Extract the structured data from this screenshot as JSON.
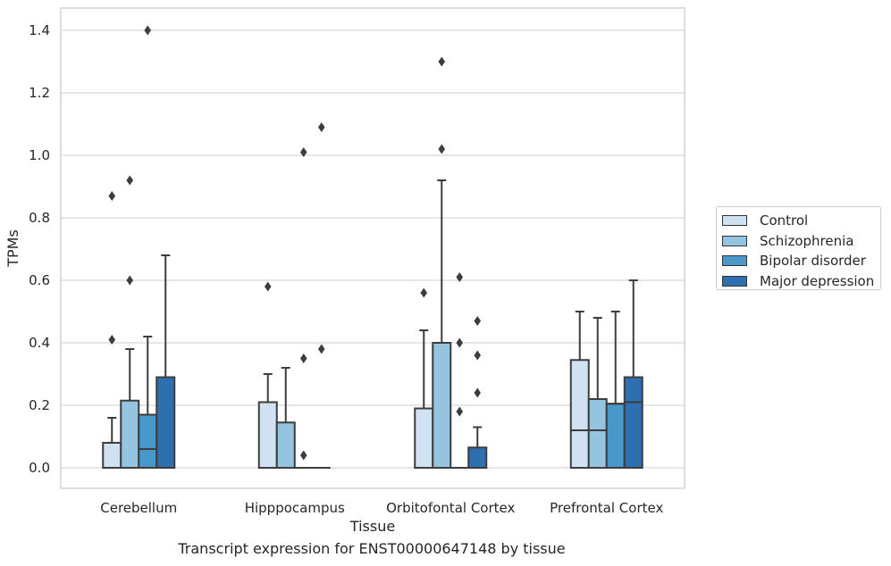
{
  "caption": "Transcript expression for ENST00000647148 by tissue",
  "chart_data": {
    "type": "box",
    "xlabel": "Tissue",
    "ylabel": "TPMs",
    "ylim": [
      -0.07,
      1.47
    ],
    "yticks": [
      "0.0",
      "0.2",
      "0.4",
      "0.6",
      "0.8",
      "1.0",
      "1.2",
      "1.4"
    ],
    "ytick_values": [
      0,
      0.2,
      0.4,
      0.6,
      0.8,
      1.0,
      1.2,
      1.4
    ],
    "grid": true,
    "legend_position": "outside right",
    "categories": [
      "Cerebellum",
      "Hipppocampus",
      "Orbitofontal Cortex",
      "Prefrontal Cortex"
    ],
    "series": [
      {
        "name": "Control",
        "color": "#d0e1f2",
        "boxes": [
          {
            "q1": 0,
            "median": 0,
            "q3": 0.08,
            "whisker_low": 0,
            "whisker_high": 0.16,
            "outliers": [
              0.41,
              0.87
            ]
          },
          {
            "q1": 0,
            "median": 0,
            "q3": 0.21,
            "whisker_low": 0,
            "whisker_high": 0.3,
            "outliers": [
              0.58
            ]
          },
          {
            "q1": 0,
            "median": 0,
            "q3": 0.19,
            "whisker_low": 0,
            "whisker_high": 0.44,
            "outliers": [
              0.56
            ]
          },
          {
            "q1": 0,
            "median": 0.12,
            "q3": 0.345,
            "whisker_low": 0,
            "whisker_high": 0.5,
            "outliers": []
          }
        ]
      },
      {
        "name": "Schizophrenia",
        "color": "#94c4df",
        "boxes": [
          {
            "q1": 0,
            "median": 0,
            "q3": 0.215,
            "whisker_low": 0,
            "whisker_high": 0.38,
            "outliers": [
              0.6,
              0.92
            ]
          },
          {
            "q1": 0,
            "median": 0,
            "q3": 0.145,
            "whisker_low": 0,
            "whisker_high": 0.32,
            "outliers": []
          },
          {
            "q1": 0,
            "median": 0,
            "q3": 0.4,
            "whisker_low": 0,
            "whisker_high": 0.92,
            "outliers": [
              1.02,
              1.3
            ]
          },
          {
            "q1": 0,
            "median": 0.12,
            "q3": 0.22,
            "whisker_low": 0,
            "whisker_high": 0.48,
            "outliers": []
          }
        ]
      },
      {
        "name": "Bipolar disorder",
        "color": "#4a98c9",
        "boxes": [
          {
            "q1": 0,
            "median": 0.06,
            "q3": 0.17,
            "whisker_low": 0,
            "whisker_high": 0.42,
            "outliers": [
              1.4
            ]
          },
          {
            "q1": 0,
            "median": 0,
            "q3": 0,
            "whisker_low": 0,
            "whisker_high": 0,
            "outliers": [
              0.04,
              0.35,
              1.01
            ]
          },
          {
            "q1": 0,
            "median": 0,
            "q3": 0,
            "whisker_low": 0,
            "whisker_high": 0,
            "outliers": [
              0.18,
              0.4,
              0.61
            ]
          },
          {
            "q1": 0,
            "median": 0.205,
            "q3": 0.205,
            "whisker_low": 0,
            "whisker_high": 0.5,
            "outliers": []
          }
        ]
      },
      {
        "name": "Major depression",
        "color": "#2e6fb0",
        "boxes": [
          {
            "q1": 0,
            "median": 0.29,
            "q3": 0.29,
            "whisker_low": 0,
            "whisker_high": 0.68,
            "outliers": []
          },
          {
            "q1": 0,
            "median": 0,
            "q3": 0,
            "whisker_low": 0,
            "whisker_high": 0,
            "outliers": [
              0.38,
              1.09
            ]
          },
          {
            "q1": 0,
            "median": 0,
            "q3": 0.065,
            "whisker_low": 0,
            "whisker_high": 0.13,
            "outliers": [
              0.24,
              0.36,
              0.47
            ]
          },
          {
            "q1": 0,
            "median": 0.21,
            "q3": 0.29,
            "whisker_low": 0,
            "whisker_high": 0.6,
            "outliers": []
          }
        ]
      }
    ]
  }
}
